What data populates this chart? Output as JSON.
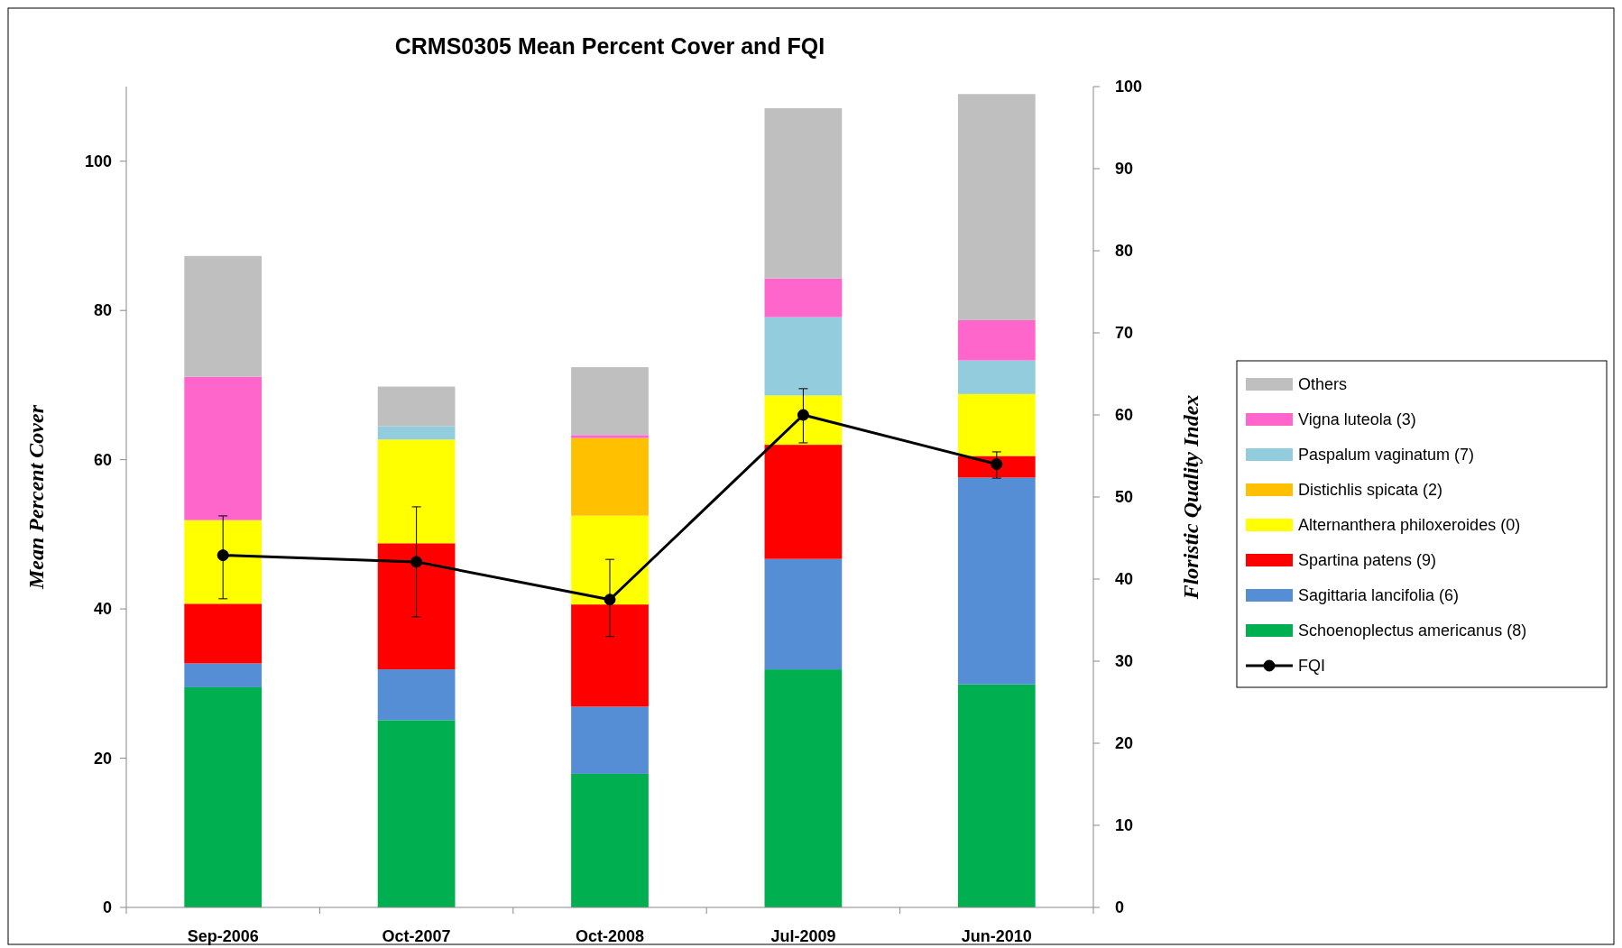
{
  "chart_data": {
    "type": "bar",
    "title": "CRMS0305 Mean Percent Cover and FQI",
    "ylabel": "Mean Percent Cover",
    "y2label": "Floristic Quality Index",
    "categories": [
      "Sep-2006",
      "Oct-2007",
      "Oct-2008",
      "Jul-2009",
      "Jun-2010"
    ],
    "stacked": true,
    "ylim": [
      0,
      110
    ],
    "yticks": [
      0,
      20,
      40,
      60,
      80,
      100
    ],
    "y2lim": [
      0,
      100
    ],
    "y2ticks": [
      0,
      10,
      20,
      30,
      40,
      50,
      60,
      70,
      80,
      90,
      100
    ],
    "grid": false,
    "legend": "right",
    "series": [
      {
        "name": "Schoenoplectus americanus (8)",
        "color": "#00b050",
        "values": [
          29.5,
          25.1,
          17.9,
          31.9,
          29.9
        ]
      },
      {
        "name": "Sagittaria lancifolia (6)",
        "color": "#558ed5",
        "values": [
          3.2,
          6.8,
          9.0,
          14.8,
          27.7
        ]
      },
      {
        "name": "Spartina patens (9)",
        "color": "#ff0000",
        "values": [
          8.0,
          16.9,
          13.7,
          15.3,
          2.9
        ]
      },
      {
        "name": "Alternanthera philoxeroides (0)",
        "color": "#ffff00",
        "values": [
          11.2,
          13.9,
          11.9,
          6.6,
          8.3
        ]
      },
      {
        "name": "Distichlis spicata (2)",
        "color": "#ffc000",
        "values": [
          0,
          0,
          10.4,
          0,
          0
        ]
      },
      {
        "name": "Paspalum vaginatum (7)",
        "color": "#93cddd",
        "values": [
          0,
          1.8,
          0,
          10.5,
          4.5
        ]
      },
      {
        "name": "Vigna luteola (3)",
        "color": "#ff66cc",
        "values": [
          19.2,
          0,
          0.4,
          5.2,
          5.4
        ]
      },
      {
        "name": "Others",
        "color": "#bfbfbf",
        "values": [
          16.2,
          5.3,
          9.1,
          22.8,
          30.3
        ]
      },
      {
        "name": "FQI",
        "type": "line",
        "axis": "y2",
        "color": "#000000",
        "marker": "circle",
        "values": [
          42.9,
          42.1,
          37.5,
          60.0,
          54.0
        ],
        "errors": [
          [
            37.6,
            47.7
          ],
          [
            35.4,
            48.8
          ],
          [
            33.0,
            42.4
          ],
          [
            56.6,
            63.2
          ],
          [
            52.3,
            55.5
          ]
        ]
      }
    ]
  }
}
